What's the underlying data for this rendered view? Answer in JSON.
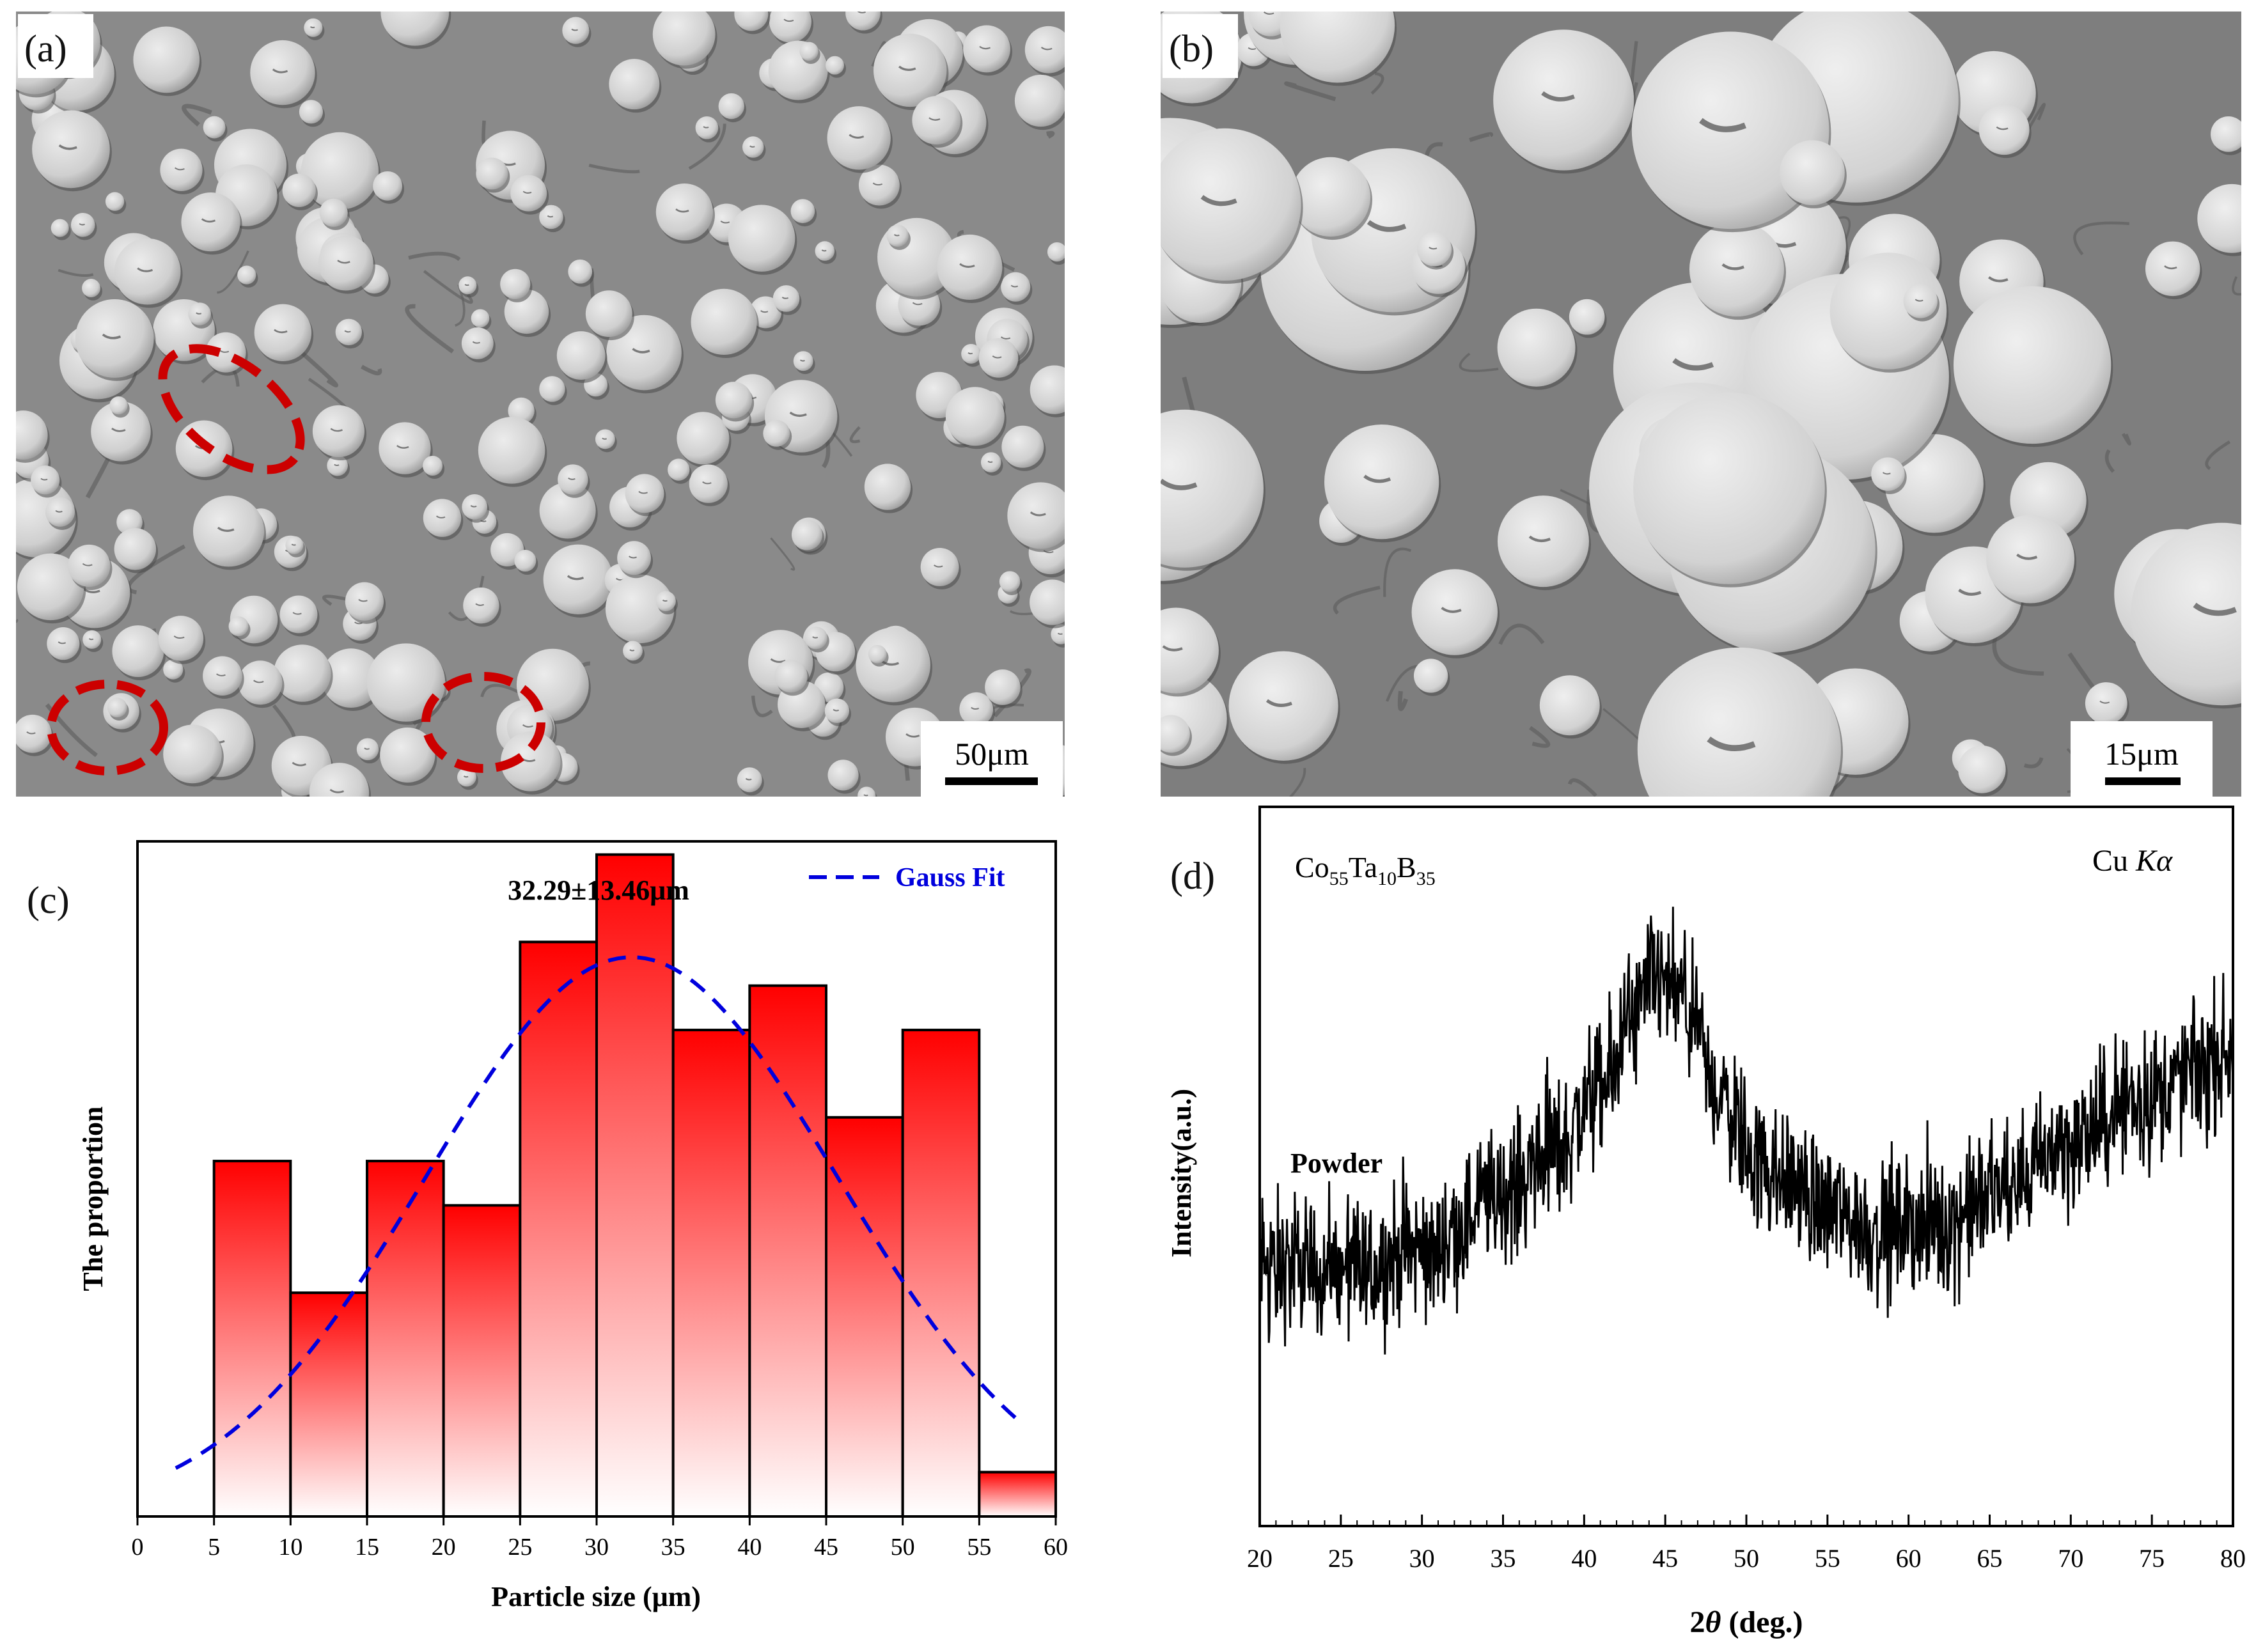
{
  "panels": {
    "a": {
      "label": "(a)",
      "scale_bar": "50μm",
      "colors": {
        "bg": "#8a8a8a",
        "particle": "#d4d4d4",
        "highlight": "#cc0000"
      }
    },
    "b": {
      "label": "(b)",
      "scale_bar": "15μm",
      "colors": {
        "bg": "#7e7e7e",
        "particle": "#d8d8d8"
      }
    },
    "c": {
      "label": "(c)"
    },
    "d": {
      "label": "(d)"
    }
  },
  "chart_data": [
    {
      "type": "bar",
      "panel": "c",
      "title": "32.29±13.46μm",
      "xlabel": "Particle size (μm)",
      "ylabel": "The proportion",
      "xlim": [
        0,
        60
      ],
      "xticks": [
        0,
        5,
        10,
        15,
        20,
        25,
        30,
        35,
        40,
        45,
        50,
        55,
        60
      ],
      "bins": [
        [
          5,
          10
        ],
        [
          10,
          15
        ],
        [
          15,
          20
        ],
        [
          20,
          25
        ],
        [
          25,
          30
        ],
        [
          30,
          35
        ],
        [
          35,
          40
        ],
        [
          40,
          45
        ],
        [
          45,
          50
        ],
        [
          50,
          55
        ],
        [
          55,
          60
        ]
      ],
      "values": [
        0.537,
        0.338,
        0.537,
        0.47,
        0.868,
        1.0,
        0.735,
        0.802,
        0.603,
        0.735,
        0.067
      ],
      "ylim": [
        0,
        1.02
      ],
      "legend": {
        "label": "Gauss Fit",
        "position": "top-right",
        "color": "#0000dd"
      },
      "gauss_fit": {
        "mean": 32.29,
        "sd": 13.46,
        "peak": 0.845,
        "x_range": [
          2.5,
          57.5
        ]
      },
      "colors": {
        "bar_top": "#ff0000",
        "bar_bottom": "#ffffff",
        "edge": "#000000"
      }
    },
    {
      "type": "line",
      "panel": "d",
      "xlabel": "2θ (deg.)",
      "xlabel_theta": "θ",
      "xlabel_prefix": "2",
      "xlabel_suffix": " (deg.)",
      "ylabel": "Intensity(a.u.)",
      "xlim": [
        20,
        80
      ],
      "xticks": [
        20,
        25,
        30,
        35,
        40,
        45,
        50,
        55,
        60,
        65,
        70,
        75,
        80
      ],
      "ylim": [
        0,
        100
      ],
      "series": [
        {
          "name": "Powder",
          "shape_points": [
            [
              20,
              36
            ],
            [
              25,
              35
            ],
            [
              30,
              38
            ],
            [
              35,
              46
            ],
            [
              38,
              52
            ],
            [
              41,
              60
            ],
            [
              43,
              70
            ],
            [
              44.5,
              76
            ],
            [
              46,
              73
            ],
            [
              48,
              61
            ],
            [
              51,
              50
            ],
            [
              55,
              44
            ],
            [
              58,
              41
            ],
            [
              62,
              42
            ],
            [
              66,
              47
            ],
            [
              70,
              53
            ],
            [
              74,
              59
            ],
            [
              77,
              62
            ],
            [
              80,
              66
            ]
          ],
          "noise_amplitude": 6
        }
      ],
      "annotations": {
        "composition": {
          "base1": "Co",
          "sub1": "55",
          "base2": "Ta",
          "sub2": "10",
          "base3": "B",
          "sub3": "35"
        },
        "radiation": {
          "prefix": "Cu ",
          "italic": "Kα"
        },
        "series_label": "Powder"
      }
    }
  ]
}
